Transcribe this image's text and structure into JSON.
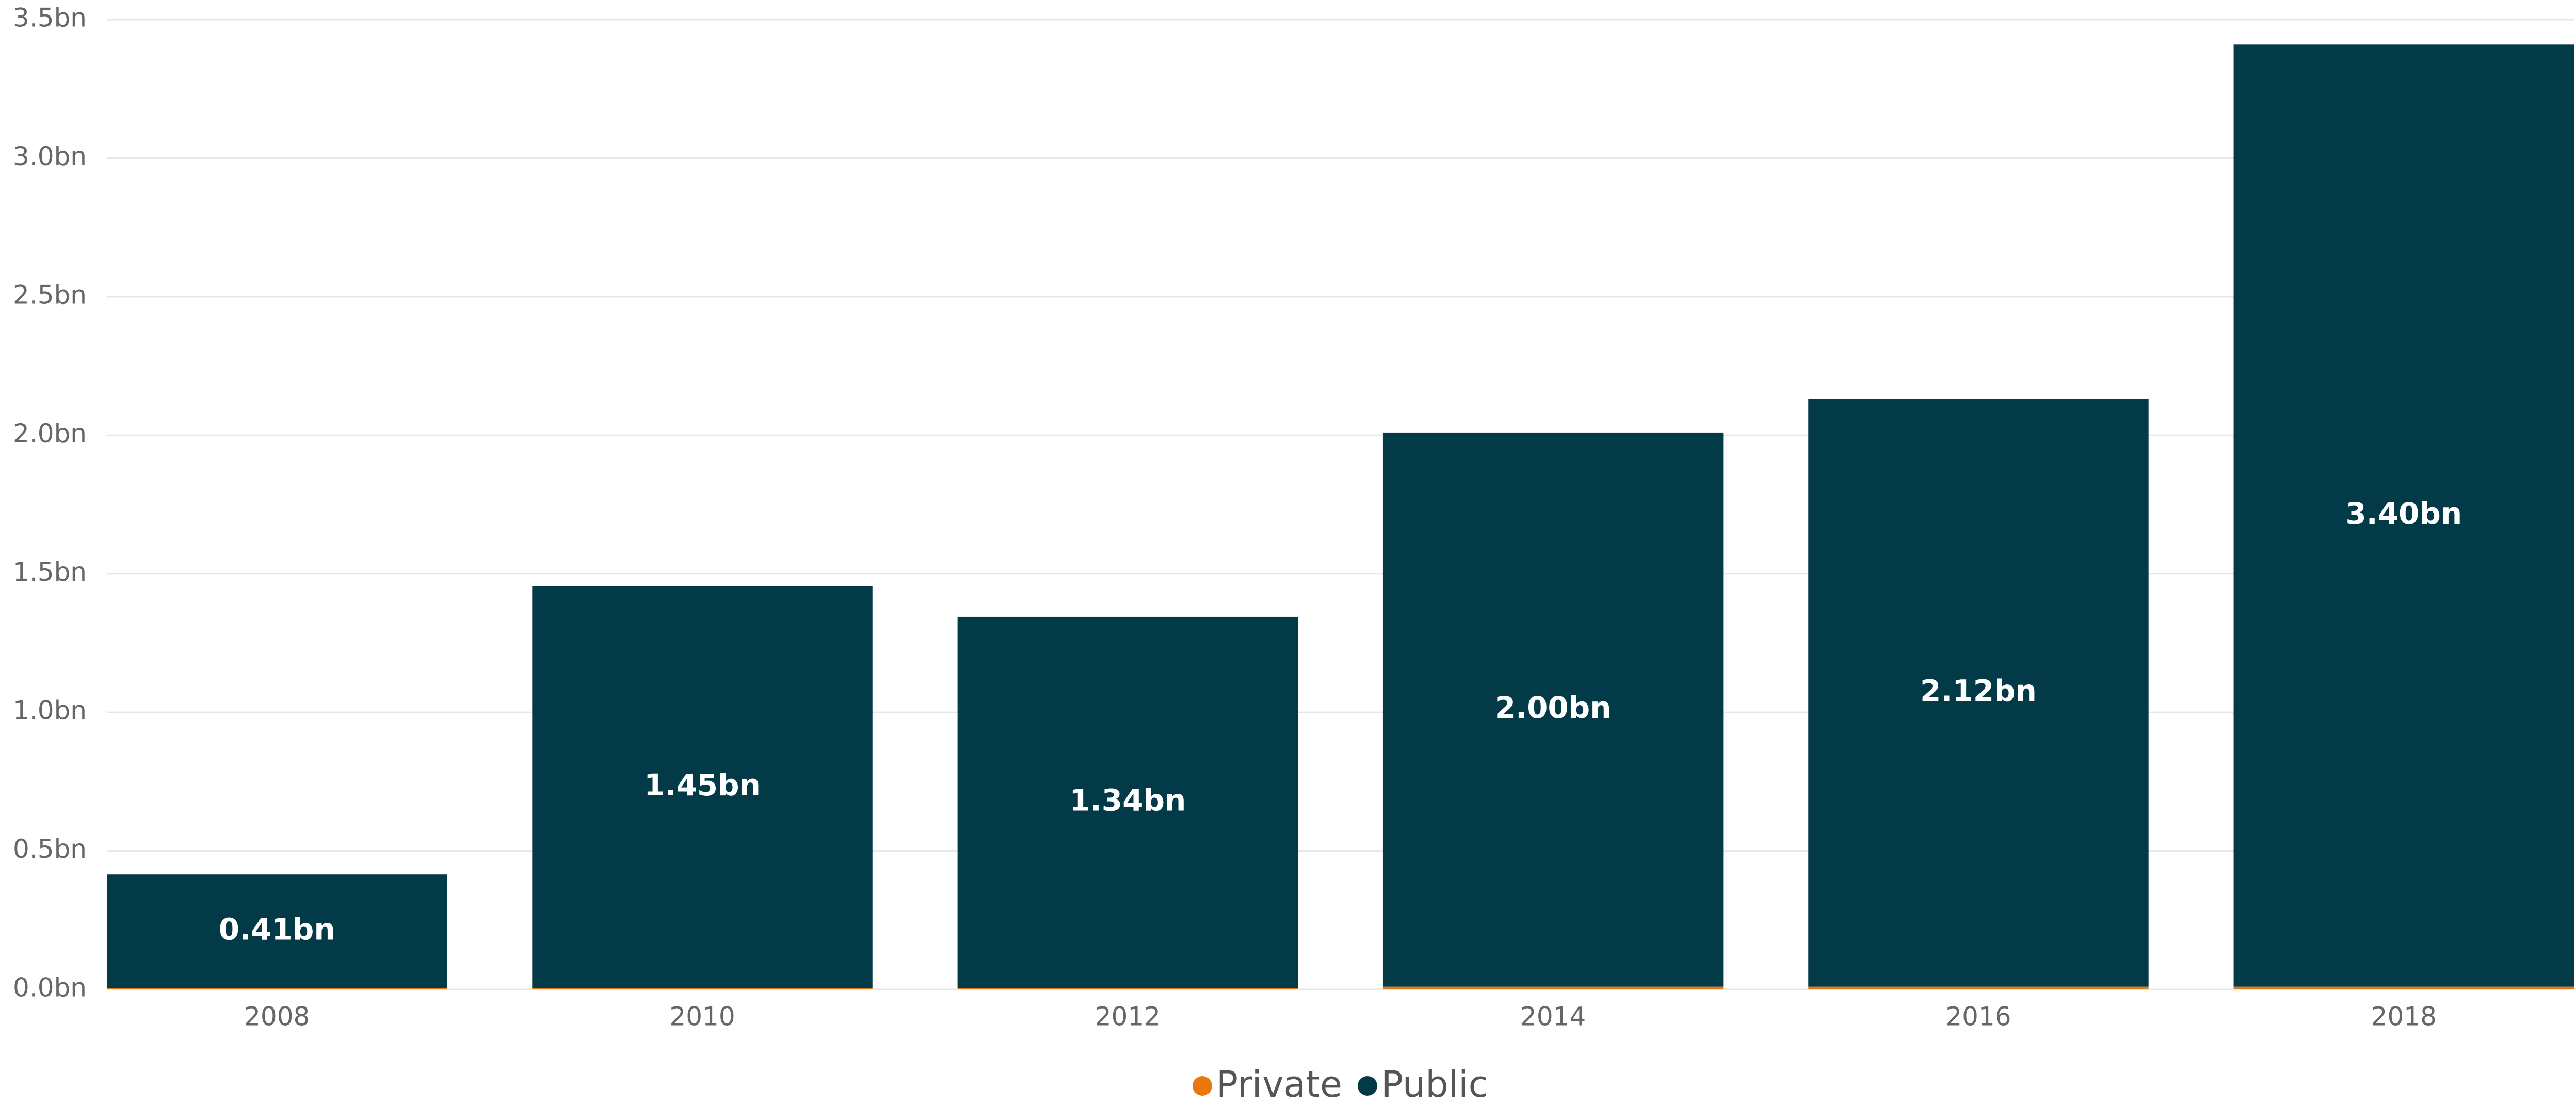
{
  "chart_data": {
    "type": "stacked_bar",
    "categories": [
      "2008",
      "2010",
      "2012",
      "2014",
      "2016",
      "2018"
    ],
    "series": [
      {
        "name": "Private",
        "color": "#e8780e",
        "values": [
          0.005,
          0.005,
          0.005,
          0.01,
          0.01,
          0.01
        ]
      },
      {
        "name": "Public",
        "color": "#023a48",
        "values": [
          0.41,
          1.45,
          1.34,
          2.0,
          2.12,
          3.4
        ],
        "value_labels": [
          "0.41bn",
          "1.45bn",
          "1.34bn",
          "2.00bn",
          "2.12bn",
          "3.40bn"
        ]
      }
    ],
    "ylim": [
      0,
      3.5
    ],
    "yticks": [
      {
        "value": 0,
        "label": "0.0bn"
      },
      {
        "value": 0.5,
        "label": "0.5bn"
      },
      {
        "value": 1,
        "label": "1.0bn"
      },
      {
        "value": 1.5,
        "label": "1.5bn"
      },
      {
        "value": 2,
        "label": "2.0bn"
      },
      {
        "value": 2.5,
        "label": "2.5bn"
      },
      {
        "value": 3,
        "label": "3.0bn"
      },
      {
        "value": 3.5,
        "label": "3.5bn"
      }
    ],
    "grid": true,
    "legend": "bottom"
  }
}
